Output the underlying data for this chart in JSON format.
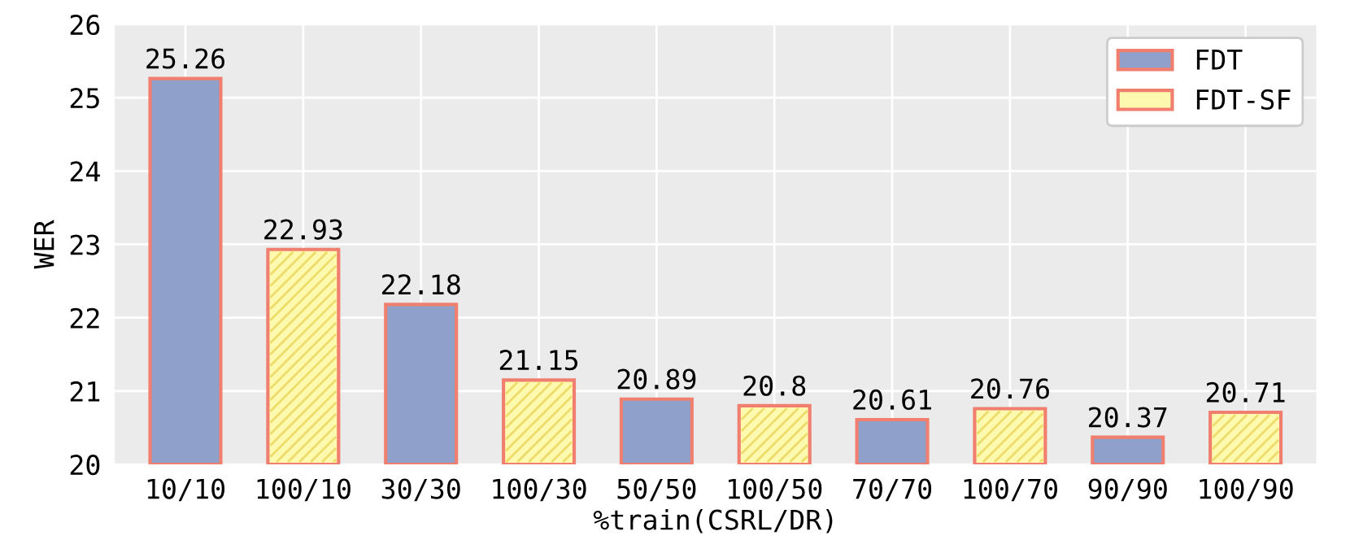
{
  "chart_data": {
    "type": "bar",
    "xlabel": "%train(CSRL/DR)",
    "ylabel": "WER",
    "categories": [
      "10/10",
      "100/10",
      "30/30",
      "100/30",
      "50/50",
      "100/50",
      "70/70",
      "100/70",
      "90/90",
      "100/90"
    ],
    "series": [
      {
        "name": "FDT",
        "color": "#8fa1cb",
        "values": [
          25.26,
          null,
          22.18,
          null,
          20.89,
          null,
          20.61,
          null,
          20.37,
          null
        ]
      },
      {
        "name": "FDT-SF",
        "color": "#fdfab0",
        "values": [
          null,
          22.93,
          null,
          21.15,
          null,
          20.8,
          null,
          20.76,
          null,
          20.71
        ]
      }
    ],
    "ylim": [
      20,
      26
    ],
    "yticks": [
      20,
      21,
      22,
      23,
      24,
      25,
      26
    ],
    "grid": true,
    "legend": "top right",
    "data_labels": true
  }
}
